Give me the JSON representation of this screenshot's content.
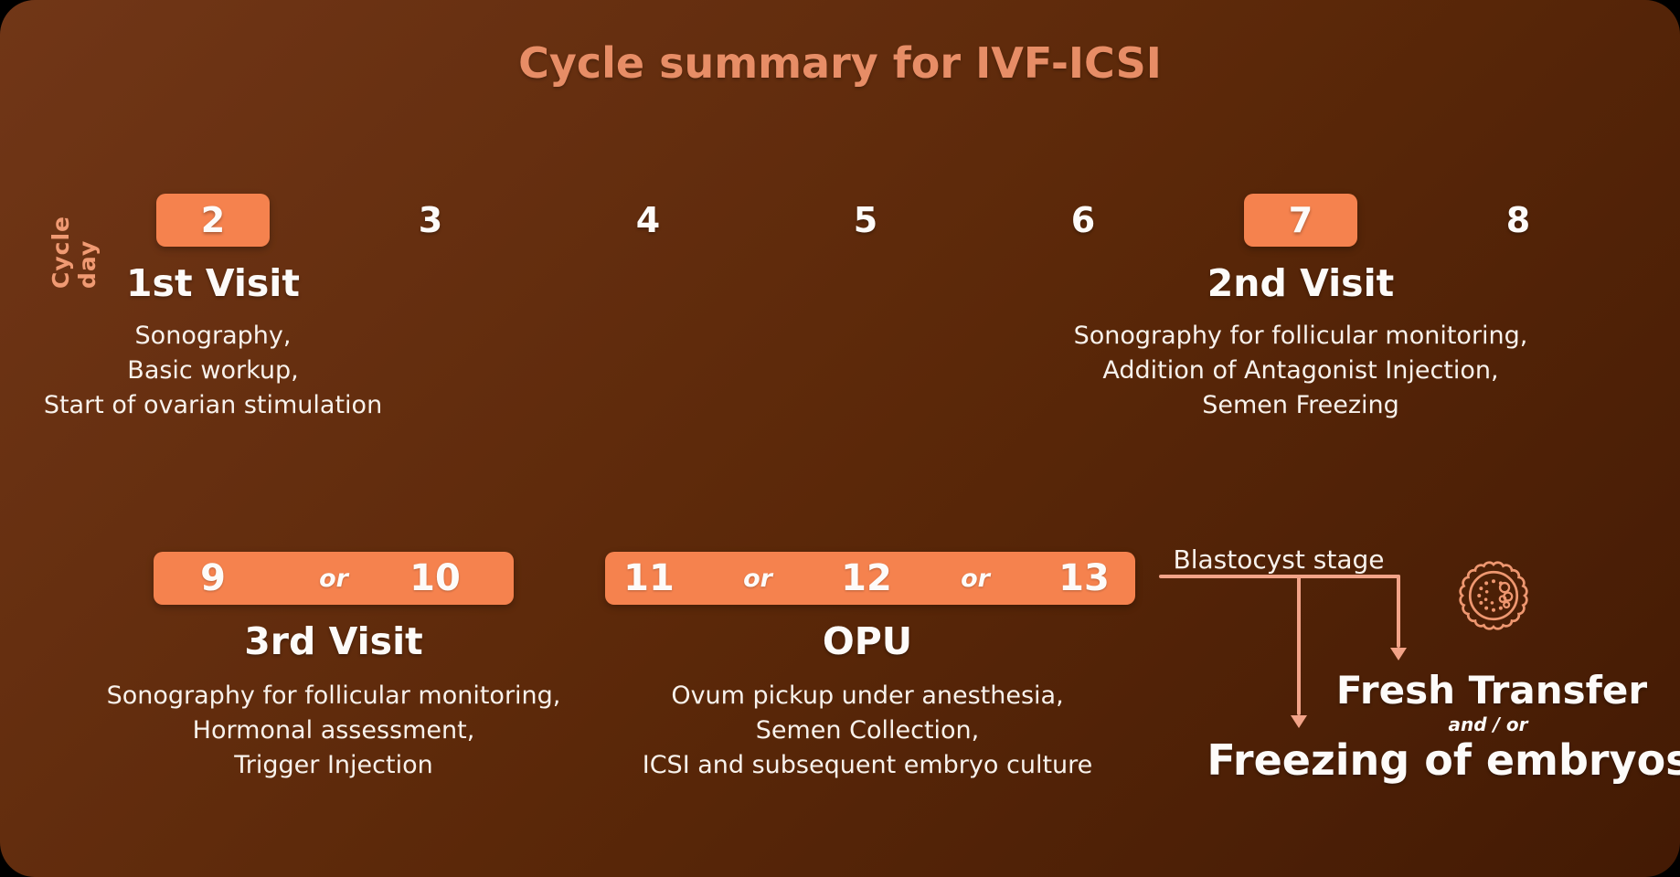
{
  "title": "Cycle summary for IVF-ICSI",
  "axis_label": "Cycle day",
  "colors": {
    "background_light": "#713617",
    "background_dark": "#431a04",
    "accent_orange": "#f5824e",
    "title_salmon": "#e78d66",
    "axis_salmon": "#f09a73",
    "connector_salmon": "#f2a388",
    "icon_salmon": "#ee9770",
    "text_white": "#f8f2ec"
  },
  "row1": {
    "days": [
      {
        "label": "2",
        "highlighted": true
      },
      {
        "label": "3",
        "highlighted": false
      },
      {
        "label": "4",
        "highlighted": false
      },
      {
        "label": "5",
        "highlighted": false
      },
      {
        "label": "6",
        "highlighted": false
      },
      {
        "label": "7",
        "highlighted": true
      },
      {
        "label": "8",
        "highlighted": false
      }
    ],
    "visits": [
      {
        "name": "1st Visit",
        "details": [
          "Sonography,",
          "Basic workup,",
          "Start of ovarian stimulation"
        ]
      },
      {
        "name": "2nd Visit",
        "details": [
          "Sonography for follicular monitoring,",
          "Addition of Antagonist Injection,",
          "Semen Freezing"
        ]
      }
    ]
  },
  "row2": {
    "bars": [
      {
        "segments": [
          "9",
          "or",
          "10"
        ]
      },
      {
        "segments": [
          "11",
          "or",
          "12",
          "or",
          "13"
        ]
      }
    ],
    "visits": [
      {
        "name": "3rd Visit",
        "details": [
          "Sonography for follicular monitoring,",
          "Hormonal assessment,",
          "Trigger Injection"
        ]
      },
      {
        "name": "OPU",
        "details": [
          "Ovum pickup under anesthesia,",
          "Semen Collection,",
          "ICSI and subsequent embryo culture"
        ]
      }
    ]
  },
  "outcome": {
    "branch_label": "Blastocyst stage",
    "option_fresh": "Fresh Transfer",
    "connector": "and / or",
    "option_freeze": "Freezing of embryos",
    "icon": "blastocyst-icon"
  }
}
